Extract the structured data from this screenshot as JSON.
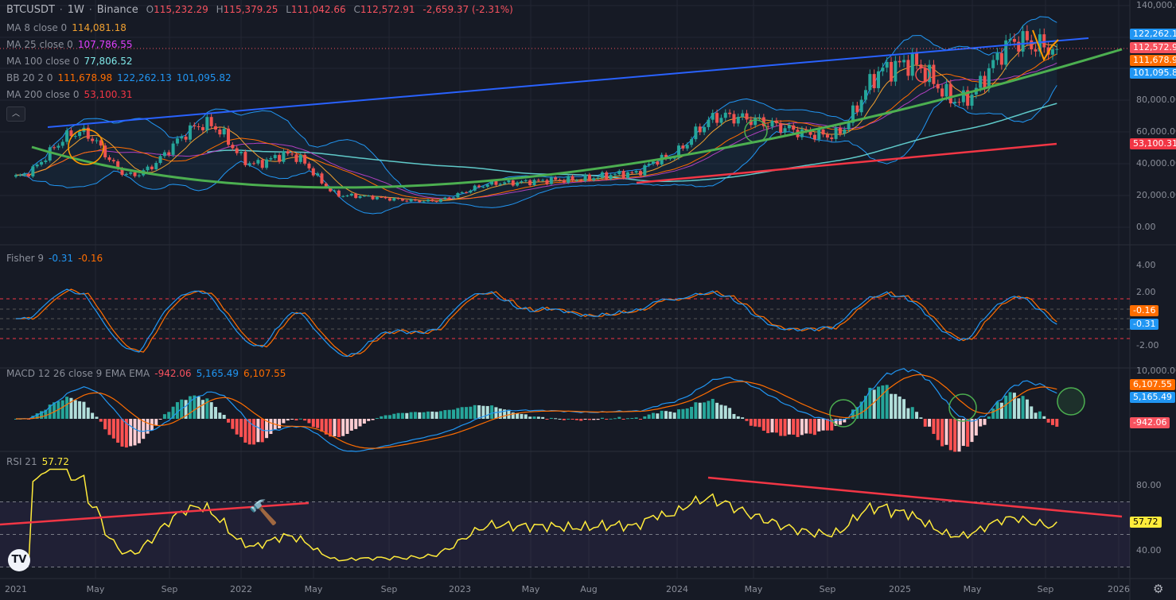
{
  "header": {
    "symbol": "BTCUSDT",
    "sep": "·",
    "interval": "1W",
    "exchange": "Binance",
    "open_label": "O",
    "open": "115,232.29",
    "high_label": "H",
    "high": "115,379.25",
    "low_label": "L",
    "low": "111,042.66",
    "close_label": "C",
    "close": "112,572.91",
    "change": "-2,659.37 (-2.31%)"
  },
  "indicators": [
    {
      "label": "MA 8 close 0",
      "values": [
        "114,081.18"
      ],
      "colors": [
        "#f0a030"
      ]
    },
    {
      "label": "MA 25 close 0",
      "values": [
        "107,786.55"
      ],
      "colors": [
        "#e040fb"
      ]
    },
    {
      "label": "MA 100 close 0",
      "values": [
        "77,806.52"
      ],
      "colors": [
        "#7fe8e8"
      ]
    },
    {
      "label": "BB 20 2 0",
      "values": [
        "111,678.98",
        "122,262.13",
        "101,095.82"
      ],
      "colors": [
        "#ff6d00",
        "#2196f3",
        "#2196f3"
      ]
    },
    {
      "label": "MA 200 close 0",
      "values": [
        "53,100.31"
      ],
      "colors": [
        "#f23645"
      ]
    }
  ],
  "fisher": {
    "label": "Fisher 9",
    "v1": "-0.31",
    "v2": "-0.16"
  },
  "macd": {
    "label": "MACD 12 26 close 9 EMA EMA",
    "hist": "-942.06",
    "macd": "5,165.49",
    "signal": "6,107.55"
  },
  "rsi": {
    "label": "RSI 21",
    "value": "57.72"
  },
  "price_axis": [
    "140,000.00",
    "80,000.00",
    "60,000.00",
    "40,000.00",
    "20,000.00",
    "0.00"
  ],
  "price_tags": [
    {
      "text": "122,262.13",
      "color": "#2196f3"
    },
    {
      "text": "112,572.91",
      "color": "#f7525f"
    },
    {
      "text": "111,678.98",
      "color": "#ff6d00"
    },
    {
      "text": "101,095.82",
      "color": "#2196f3"
    },
    {
      "text": "53,100.31",
      "color": "#f23645"
    }
  ],
  "fisher_axis": [
    "4.00",
    "2.00",
    "-2.00"
  ],
  "fisher_tags": [
    {
      "text": "-0.16",
      "color": "#ff6d00"
    },
    {
      "text": "-0.31",
      "color": "#2196f3"
    }
  ],
  "macd_axis": [
    "10,000.00"
  ],
  "macd_tags": [
    {
      "text": "6,107.55",
      "color": "#ff6d00"
    },
    {
      "text": "5,165.49",
      "color": "#2196f3"
    },
    {
      "text": "-942.06",
      "color": "#f7525f"
    }
  ],
  "rsi_axis": [
    "80.00",
    "40.00"
  ],
  "rsi_tag": {
    "text": "57.72",
    "color": "#ffeb3b"
  },
  "time_axis": [
    "2021",
    "May",
    "Sep",
    "2022",
    "May",
    "Sep",
    "2023",
    "May",
    "Aug",
    "2024",
    "May",
    "Sep",
    "2025",
    "May",
    "Sep",
    "2026"
  ],
  "collapse_icon": "chevron-up-icon",
  "logo_text": "TV",
  "chart_data": {
    "type": "candlestick",
    "interval": "1W",
    "price_keypoints": {
      "week": [
        0,
        15,
        27,
        45,
        56,
        64,
        77,
        97,
        114,
        130,
        145,
        152,
        166,
        192,
        205,
        210,
        222,
        236,
        240,
        245
      ],
      "close": [
        32000,
        60000,
        33000,
        65000,
        40000,
        46000,
        20000,
        16500,
        28000,
        30000,
        34000,
        43000,
        70000,
        58000,
        100000,
        104000,
        80000,
        118000,
        115000,
        112572.91
      ]
    },
    "price_range": [
      0,
      140000
    ],
    "fisher_range": [
      -2.8,
      5.5
    ],
    "rsi_range": [
      25,
      95
    ]
  }
}
